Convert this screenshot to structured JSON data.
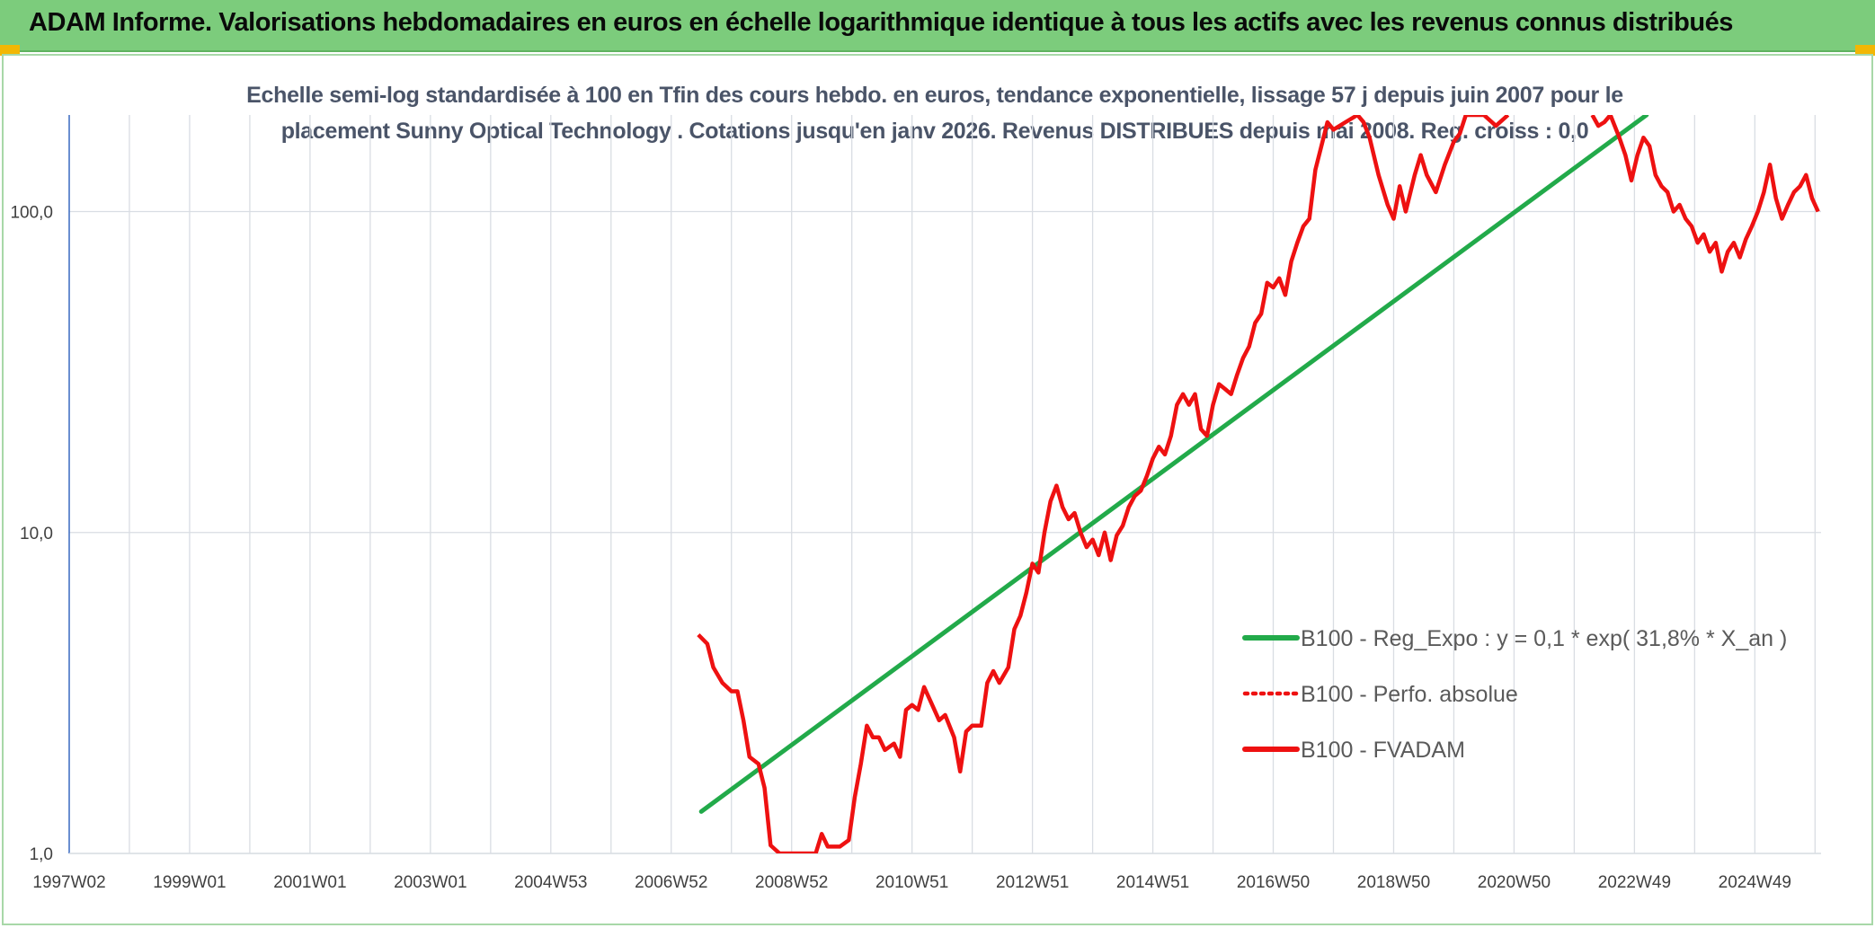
{
  "header": {
    "title": "ADAM Informe. Valorisations hebdomadaires en euros en échelle logarithmique identique à tous les actifs avec les revenus connus distribués"
  },
  "chart_data": {
    "type": "line",
    "subtitle_line1": "Echelle semi-log standardisée à 100 en Tfin des cours hebdo. en euros, tendance exponentielle, lissage 57 j depuis juin 2007 pour le",
    "subtitle_line2": "placement Sunny Optical Technology . Cotations jusqu'en janv 2026. Revenus DISTRIBUES depuis mai 2008. Reg. croiss : 0,0",
    "y_scale": "log",
    "ylim": [
      1,
      200
    ],
    "y_ticks": [
      "1,0",
      "10,0",
      "100,0"
    ],
    "xlim": [
      1997.0,
      2026.1
    ],
    "x_ticks": [
      {
        "label": "1997W02",
        "x": 1997.0
      },
      {
        "label": "1999W01",
        "x": 1999.0
      },
      {
        "label": "2001W01",
        "x": 2001.0
      },
      {
        "label": "2003W01",
        "x": 2003.0
      },
      {
        "label": "2004W53",
        "x": 2005.0
      },
      {
        "label": "2006W52",
        "x": 2007.0
      },
      {
        "label": "2008W52",
        "x": 2009.0
      },
      {
        "label": "2010W51",
        "x": 2011.0
      },
      {
        "label": "2012W51",
        "x": 2013.0
      },
      {
        "label": "2014W51",
        "x": 2015.0
      },
      {
        "label": "2016W50",
        "x": 2017.0
      },
      {
        "label": "2018W50",
        "x": 2019.0
      },
      {
        "label": "2020W50",
        "x": 2021.0
      },
      {
        "label": "2022W49",
        "x": 2023.0
      },
      {
        "label": "2024W49",
        "x": 2025.0
      }
    ],
    "grid": true,
    "legend_position": "bottom-right",
    "colors": {
      "fvadam": "#ee1111",
      "regexpo": "#22aa4a",
      "perfo": "#ee1111",
      "grid": "#d9dde3",
      "axis": "#4472c4"
    },
    "series": [
      {
        "name": "B100 - Reg_Expo : y = 0,1 * exp( 31,8% * X_an )",
        "style": "solid-green",
        "points": [
          [
            2007.5,
            1.35
          ],
          [
            2023.2,
            200
          ]
        ]
      },
      {
        "name": "B100 - Perfo. absolue",
        "style": "dotted-red",
        "points": []
      },
      {
        "name": "B100 - FVADAM",
        "style": "solid-red",
        "points": [
          [
            2007.45,
            4.8
          ],
          [
            2007.6,
            4.5
          ],
          [
            2007.7,
            3.8
          ],
          [
            2007.85,
            3.4
          ],
          [
            2008.0,
            3.2
          ],
          [
            2008.1,
            3.2
          ],
          [
            2008.2,
            2.6
          ],
          [
            2008.3,
            2.0
          ],
          [
            2008.45,
            1.9
          ],
          [
            2008.55,
            1.6
          ],
          [
            2008.65,
            1.06
          ],
          [
            2008.8,
            1.0
          ],
          [
            2009.4,
            1.0
          ],
          [
            2009.5,
            1.15
          ],
          [
            2009.6,
            1.05
          ],
          [
            2009.8,
            1.05
          ],
          [
            2009.95,
            1.1
          ],
          [
            2010.05,
            1.5
          ],
          [
            2010.15,
            1.9
          ],
          [
            2010.25,
            2.5
          ],
          [
            2010.35,
            2.3
          ],
          [
            2010.45,
            2.3
          ],
          [
            2010.55,
            2.1
          ],
          [
            2010.7,
            2.2
          ],
          [
            2010.8,
            2.0
          ],
          [
            2010.9,
            2.8
          ],
          [
            2011.0,
            2.9
          ],
          [
            2011.1,
            2.8
          ],
          [
            2011.2,
            3.3
          ],
          [
            2011.3,
            3.0
          ],
          [
            2011.45,
            2.6
          ],
          [
            2011.55,
            2.7
          ],
          [
            2011.7,
            2.3
          ],
          [
            2011.8,
            1.8
          ],
          [
            2011.9,
            2.4
          ],
          [
            2012.0,
            2.5
          ],
          [
            2012.15,
            2.5
          ],
          [
            2012.25,
            3.4
          ],
          [
            2012.35,
            3.7
          ],
          [
            2012.45,
            3.4
          ],
          [
            2012.6,
            3.8
          ],
          [
            2012.7,
            5.0
          ],
          [
            2012.8,
            5.5
          ],
          [
            2012.9,
            6.5
          ],
          [
            2013.0,
            8.0
          ],
          [
            2013.1,
            7.5
          ],
          [
            2013.2,
            10.0
          ],
          [
            2013.3,
            12.5
          ],
          [
            2013.4,
            14.0
          ],
          [
            2013.5,
            12.0
          ],
          [
            2013.6,
            11.0
          ],
          [
            2013.7,
            11.5
          ],
          [
            2013.8,
            10.0
          ],
          [
            2013.9,
            9.0
          ],
          [
            2014.0,
            9.5
          ],
          [
            2014.1,
            8.5
          ],
          [
            2014.2,
            10.0
          ],
          [
            2014.3,
            8.2
          ],
          [
            2014.4,
            9.8
          ],
          [
            2014.5,
            10.5
          ],
          [
            2014.6,
            12.0
          ],
          [
            2014.7,
            13.0
          ],
          [
            2014.8,
            13.5
          ],
          [
            2014.9,
            15.0
          ],
          [
            2015.0,
            17.0
          ],
          [
            2015.1,
            18.5
          ],
          [
            2015.2,
            17.5
          ],
          [
            2015.3,
            20.0
          ],
          [
            2015.4,
            25.0
          ],
          [
            2015.5,
            27.0
          ],
          [
            2015.6,
            25.0
          ],
          [
            2015.7,
            27.0
          ],
          [
            2015.8,
            21.0
          ],
          [
            2015.9,
            20.0
          ],
          [
            2016.0,
            25.0
          ],
          [
            2016.1,
            29.0
          ],
          [
            2016.2,
            28.0
          ],
          [
            2016.3,
            27.0
          ],
          [
            2016.4,
            31.0
          ],
          [
            2016.5,
            35.0
          ],
          [
            2016.6,
            38.0
          ],
          [
            2016.7,
            45.0
          ],
          [
            2016.8,
            48.0
          ],
          [
            2016.9,
            60.0
          ],
          [
            2017.0,
            58.0
          ],
          [
            2017.1,
            62.0
          ],
          [
            2017.2,
            55.0
          ],
          [
            2017.3,
            70.0
          ],
          [
            2017.4,
            80.0
          ],
          [
            2017.5,
            90.0
          ],
          [
            2017.6,
            95.0
          ],
          [
            2017.7,
            135.0
          ],
          [
            2017.8,
            160.0
          ],
          [
            2017.9,
            190.0
          ],
          [
            2018.0,
            180.0
          ],
          [
            2018.2,
            190.0
          ],
          [
            2018.4,
            200.0
          ],
          [
            2018.5,
            190.0
          ],
          [
            2018.6,
            170.0
          ],
          [
            2018.75,
            130.0
          ],
          [
            2018.9,
            105.0
          ],
          [
            2019.0,
            95.0
          ],
          [
            2019.1,
            120.0
          ],
          [
            2019.2,
            100.0
          ],
          [
            2019.35,
            130.0
          ],
          [
            2019.45,
            150.0
          ],
          [
            2019.55,
            130.0
          ],
          [
            2019.7,
            115.0
          ],
          [
            2019.85,
            140.0
          ],
          [
            2020.0,
            165.0
          ],
          [
            2020.1,
            175.0
          ],
          [
            2020.2,
            200.0
          ],
          [
            2020.5,
            200.0
          ],
          [
            2020.7,
            185.0
          ],
          [
            2020.9,
            200.0
          ]
        ],
        "points_2": [
          [
            2022.3,
            200.0
          ],
          [
            2022.4,
            185.0
          ],
          [
            2022.5,
            190.0
          ],
          [
            2022.6,
            200.0
          ],
          [
            2022.75,
            170.0
          ],
          [
            2022.85,
            150.0
          ],
          [
            2022.95,
            125.0
          ],
          [
            2023.05,
            150.0
          ],
          [
            2023.15,
            170.0
          ],
          [
            2023.25,
            160.0
          ],
          [
            2023.35,
            130.0
          ],
          [
            2023.45,
            120.0
          ],
          [
            2023.55,
            115.0
          ],
          [
            2023.65,
            100.0
          ],
          [
            2023.75,
            105.0
          ],
          [
            2023.85,
            95.0
          ],
          [
            2023.95,
            90.0
          ],
          [
            2024.05,
            80.0
          ],
          [
            2024.15,
            85.0
          ],
          [
            2024.25,
            75.0
          ],
          [
            2024.35,
            80.0
          ],
          [
            2024.45,
            65.0
          ],
          [
            2024.55,
            75.0
          ],
          [
            2024.65,
            80.0
          ],
          [
            2024.75,
            72.0
          ],
          [
            2024.85,
            82.0
          ],
          [
            2024.95,
            90.0
          ],
          [
            2025.05,
            100.0
          ],
          [
            2025.15,
            115.0
          ],
          [
            2025.25,
            140.0
          ],
          [
            2025.35,
            110.0
          ],
          [
            2025.45,
            95.0
          ],
          [
            2025.55,
            105.0
          ],
          [
            2025.65,
            115.0
          ],
          [
            2025.75,
            120.0
          ],
          [
            2025.85,
            130.0
          ],
          [
            2025.95,
            110.0
          ],
          [
            2026.05,
            100.0
          ]
        ]
      }
    ]
  }
}
